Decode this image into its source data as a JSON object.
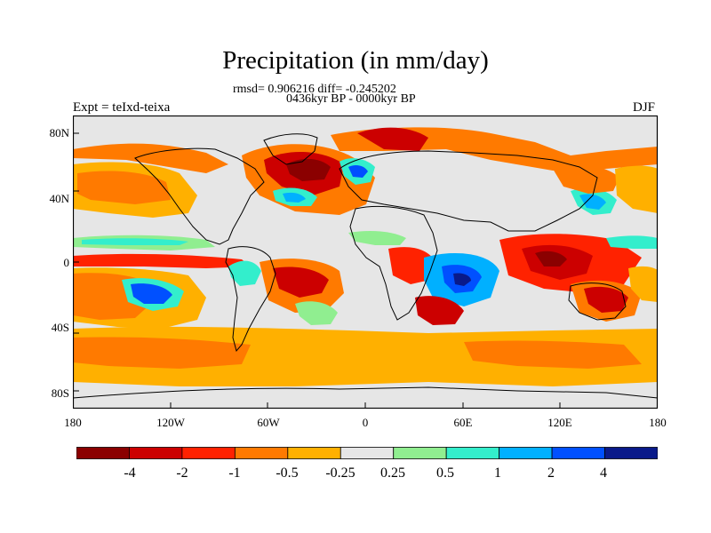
{
  "title": "Precipitation (in mm/day)",
  "stats_line": "rmsd= 0.906216 diff= -0.245202",
  "period_line": "0436kyr BP - 0000kyr BP",
  "experiment": "Expt = teIxd-teixa",
  "season": "DJF",
  "lat_ticks": [
    "80N",
    "40N",
    "0",
    "40S",
    "80S"
  ],
  "lon_ticks": [
    "180",
    "120W",
    "60W",
    "0",
    "60E",
    "120E",
    "180"
  ],
  "colorbar": {
    "colors": [
      "#8b0000",
      "#cc0000",
      "#ff2200",
      "#ff7a00",
      "#ffb000",
      "#e6e6e6",
      "#90ee90",
      "#33eecc",
      "#00b0ff",
      "#0050ff",
      "#0a1a8a"
    ],
    "labels": [
      "-4",
      "-2",
      "-1",
      "-0.5",
      "-0.25",
      "0.25",
      "0.5",
      "1",
      "2",
      "4"
    ]
  },
  "background_color": "#e6e6e6"
}
